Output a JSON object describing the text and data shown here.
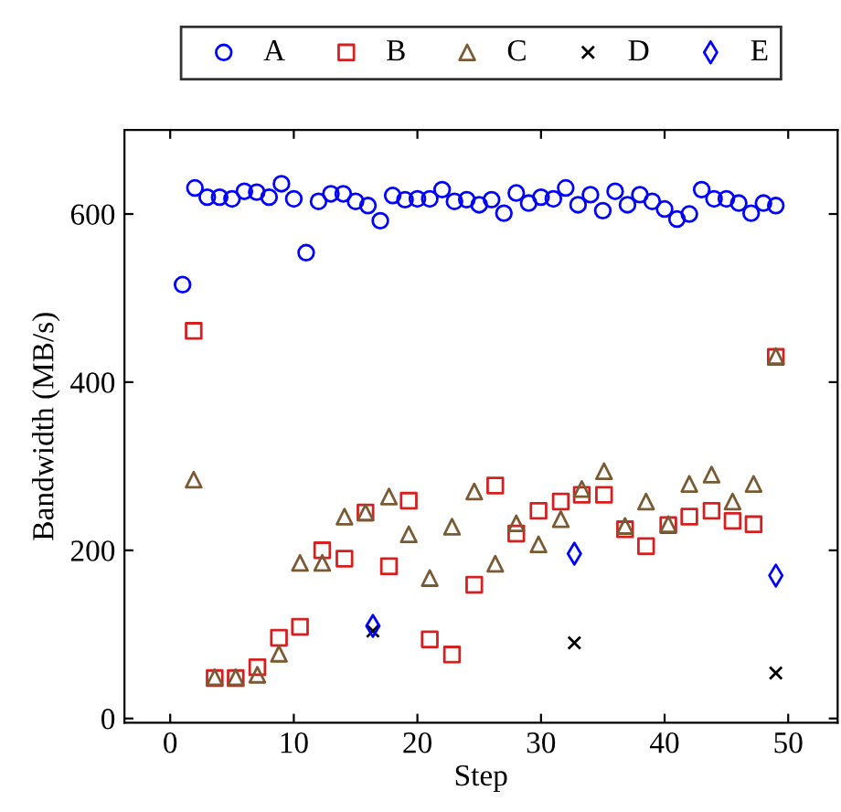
{
  "chart_data": {
    "type": "scatter",
    "xlabel": "Step",
    "ylabel": "Bandwidth (MB/s)",
    "xlim": [
      -3.7,
      54
    ],
    "xticks": [
      0,
      10,
      20,
      30,
      40,
      50
    ],
    "ylim": [
      -5,
      700
    ],
    "yticks": [
      0,
      200,
      400,
      600
    ],
    "grid": false,
    "legend": "top",
    "series": [
      {
        "name": "A",
        "color": "#0000ff",
        "marker": "circle",
        "x": [
          1,
          2,
          3,
          4,
          5,
          6,
          7,
          8,
          9,
          10,
          11,
          12,
          13,
          14,
          15,
          16,
          17,
          18,
          19,
          20,
          21,
          22,
          23,
          24,
          25,
          26,
          27,
          28,
          29,
          30,
          31,
          32,
          33,
          34,
          35,
          36,
          37,
          38,
          39,
          40,
          41,
          42,
          43,
          44,
          45,
          46,
          47,
          48,
          49
        ],
        "values": [
          516,
          631,
          620,
          620,
          618,
          627,
          626,
          620,
          636,
          618,
          554,
          615,
          624,
          624,
          615,
          610,
          592,
          622,
          617,
          618,
          618,
          629,
          615,
          617,
          611,
          617,
          601,
          625,
          613,
          620,
          618,
          631,
          611,
          623,
          604,
          627,
          611,
          623,
          615,
          606,
          594,
          600,
          629,
          618,
          618,
          613,
          601,
          613,
          610
        ]
      },
      {
        "name": "B",
        "color": "#d62020",
        "marker": "square",
        "x": [
          1.9,
          3.6,
          5.3,
          7.05,
          8.8,
          10.5,
          12.3,
          14.1,
          15.8,
          17.7,
          19.3,
          21.0,
          22.8,
          24.6,
          26.3,
          28.0,
          29.8,
          31.6,
          33.3,
          35.1,
          36.8,
          38.5,
          40.3,
          42.0,
          43.8,
          45.5,
          47.2,
          49.0
        ],
        "values": [
          461,
          48,
          48,
          61,
          96,
          109,
          200,
          190,
          245,
          181,
          259,
          94,
          76,
          159,
          277,
          220,
          247,
          258,
          266,
          266,
          225,
          205,
          230,
          240,
          247,
          235,
          231,
          430
        ]
      },
      {
        "name": "C",
        "color": "#7a5a32",
        "marker": "triangle",
        "x": [
          1.9,
          3.6,
          5.3,
          7.05,
          8.8,
          10.5,
          12.3,
          14.1,
          15.8,
          17.7,
          19.3,
          21.0,
          22.8,
          24.6,
          26.3,
          28.0,
          29.8,
          31.6,
          33.3,
          35.1,
          36.8,
          38.5,
          40.3,
          42.0,
          43.8,
          45.5,
          47.2,
          49.0
        ],
        "values": [
          284,
          49,
          49,
          52,
          77,
          185,
          185,
          240,
          245,
          264,
          219,
          167,
          228,
          270,
          184,
          232,
          207,
          237,
          273,
          294,
          229,
          258,
          231,
          279,
          290,
          258,
          279,
          431
        ]
      },
      {
        "name": "D",
        "color": "#000000",
        "marker": "cross",
        "x": [
          16.4,
          32.7,
          49.0
        ],
        "values": [
          104,
          90,
          54
        ]
      },
      {
        "name": "E",
        "color": "#0000ff",
        "marker": "diamond",
        "x": [
          16.4,
          32.7,
          49.0
        ],
        "values": [
          110,
          196,
          170
        ]
      }
    ]
  }
}
